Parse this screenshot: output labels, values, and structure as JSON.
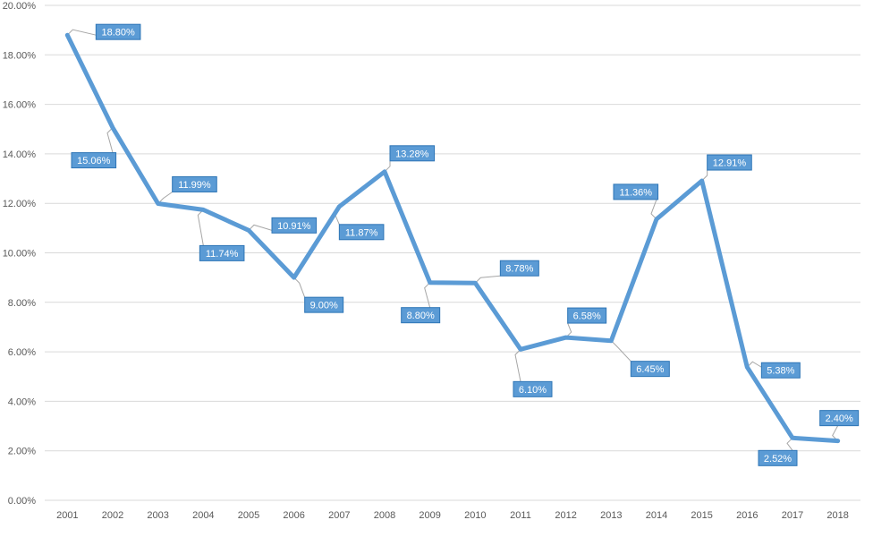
{
  "chart_data": {
    "type": "line",
    "title": "",
    "xlabel": "",
    "ylabel": "",
    "categories": [
      "2001",
      "2002",
      "2003",
      "2004",
      "2005",
      "2006",
      "2007",
      "2008",
      "2009",
      "2010",
      "2011",
      "2012",
      "2013",
      "2014",
      "2015",
      "2016",
      "2017",
      "2018"
    ],
    "series": [
      {
        "values": [
          18.8,
          15.06,
          11.99,
          11.74,
          10.91,
          9.0,
          11.87,
          13.28,
          8.8,
          8.78,
          6.1,
          6.58,
          6.45,
          11.36,
          12.91,
          5.38,
          2.52,
          2.4
        ],
        "labels": [
          "18.80%",
          "15.06%",
          "11.99%",
          "11.74%",
          "10.91%",
          "9.00%",
          "11.87%",
          "13.28%",
          "8.80%",
          "8.78%",
          "6.10%",
          "6.58%",
          "6.45%",
          "11.36%",
          "12.91%",
          "5.38%",
          "2.52%",
          "2.40%"
        ]
      }
    ],
    "ylim": [
      0,
      20
    ],
    "y_ticks": [
      "0.00%",
      "2.00%",
      "4.00%",
      "6.00%",
      "8.00%",
      "10.00%",
      "12.00%",
      "14.00%",
      "16.00%",
      "18.00%",
      "20.00%"
    ],
    "grid": true,
    "legend": "none",
    "colors": {
      "line": "#5B9BD5",
      "label_fill": "#5B9BD5",
      "label_border": "#2E75B6",
      "gridline": "#D9D9D9",
      "leader": "#A6A6A6"
    }
  }
}
